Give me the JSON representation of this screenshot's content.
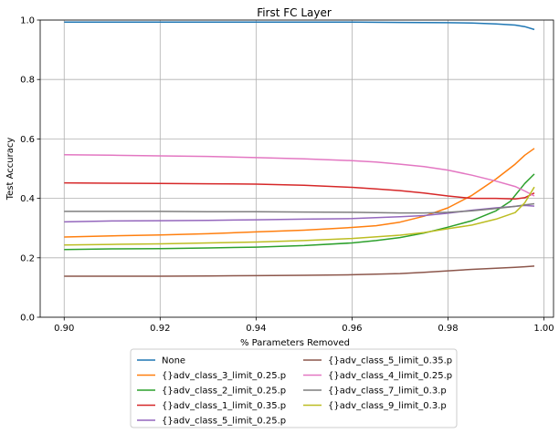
{
  "chart_data": {
    "type": "line",
    "title": "First FC Layer",
    "xlabel": "% Parameters Removed",
    "ylabel": "Test Accuracy",
    "xlim": [
      0.895,
      1.002
    ],
    "ylim": [
      0.0,
      1.0
    ],
    "xticks": [
      0.9,
      0.92,
      0.94,
      0.96,
      0.98,
      1.0
    ],
    "xtick_labels": [
      "0.90",
      "0.92",
      "0.94",
      "0.96",
      "0.98",
      "1.00"
    ],
    "yticks": [
      0.0,
      0.2,
      0.4,
      0.6,
      0.8,
      1.0
    ],
    "ytick_labels": [
      "0.0",
      "0.2",
      "0.4",
      "0.6",
      "0.8",
      "1.0"
    ],
    "grid": true,
    "legend_position": "below",
    "legend_columns": 2,
    "series": [
      {
        "name": "None",
        "color": "#1f77b4",
        "x": [
          0.9,
          0.92,
          0.94,
          0.96,
          0.97,
          0.98,
          0.985,
          0.99,
          0.994,
          0.996,
          0.998
        ],
        "y": [
          0.993,
          0.993,
          0.993,
          0.993,
          0.992,
          0.991,
          0.99,
          0.987,
          0.983,
          0.978,
          0.968
        ]
      },
      {
        "name": "{}adv_class_3_limit_0.25.p",
        "color": "#ff7f0e",
        "x": [
          0.9,
          0.91,
          0.92,
          0.93,
          0.94,
          0.95,
          0.96,
          0.965,
          0.97,
          0.975,
          0.98,
          0.985,
          0.99,
          0.994,
          0.996,
          0.998
        ],
        "y": [
          0.27,
          0.274,
          0.277,
          0.281,
          0.287,
          0.293,
          0.302,
          0.308,
          0.32,
          0.34,
          0.368,
          0.41,
          0.465,
          0.515,
          0.545,
          0.568
        ]
      },
      {
        "name": "{}adv_class_2_limit_0.25.p",
        "color": "#2ca02c",
        "x": [
          0.9,
          0.91,
          0.92,
          0.93,
          0.94,
          0.95,
          0.96,
          0.965,
          0.97,
          0.975,
          0.98,
          0.985,
          0.99,
          0.993,
          0.996,
          0.998
        ],
        "y": [
          0.228,
          0.23,
          0.231,
          0.233,
          0.236,
          0.241,
          0.25,
          0.258,
          0.268,
          0.283,
          0.303,
          0.325,
          0.358,
          0.39,
          0.45,
          0.482
        ]
      },
      {
        "name": "{}adv_class_1_limit_0.35.p",
        "color": "#d62728",
        "x": [
          0.9,
          0.91,
          0.92,
          0.93,
          0.94,
          0.95,
          0.96,
          0.965,
          0.97,
          0.975,
          0.98,
          0.985,
          0.99,
          0.994,
          0.996,
          0.998
        ],
        "y": [
          0.452,
          0.451,
          0.45,
          0.449,
          0.448,
          0.444,
          0.437,
          0.432,
          0.426,
          0.418,
          0.408,
          0.4,
          0.4,
          0.398,
          0.402,
          0.418
        ]
      },
      {
        "name": "{}adv_class_5_limit_0.25.p",
        "color": "#9467bd",
        "x": [
          0.9,
          0.91,
          0.92,
          0.93,
          0.94,
          0.95,
          0.96,
          0.97,
          0.975,
          0.98,
          0.985,
          0.99,
          0.994,
          0.996,
          0.998
        ],
        "y": [
          0.321,
          0.324,
          0.325,
          0.326,
          0.328,
          0.33,
          0.332,
          0.338,
          0.342,
          0.35,
          0.36,
          0.368,
          0.373,
          0.376,
          0.374
        ]
      },
      {
        "name": "{}adv_class_5_limit_0.35.p",
        "color": "#8c564b",
        "x": [
          0.9,
          0.91,
          0.92,
          0.93,
          0.94,
          0.95,
          0.96,
          0.97,
          0.975,
          0.98,
          0.985,
          0.99,
          0.994,
          0.996,
          0.998
        ],
        "y": [
          0.138,
          0.138,
          0.138,
          0.139,
          0.14,
          0.141,
          0.143,
          0.147,
          0.151,
          0.156,
          0.161,
          0.165,
          0.168,
          0.17,
          0.172
        ]
      },
      {
        "name": "{}adv_class_4_limit_0.25.p",
        "color": "#e377c2",
        "x": [
          0.9,
          0.91,
          0.92,
          0.93,
          0.94,
          0.95,
          0.96,
          0.965,
          0.97,
          0.975,
          0.98,
          0.985,
          0.99,
          0.994,
          0.996,
          0.998
        ],
        "y": [
          0.547,
          0.545,
          0.543,
          0.541,
          0.537,
          0.533,
          0.527,
          0.522,
          0.515,
          0.507,
          0.495,
          0.478,
          0.458,
          0.44,
          0.425,
          0.408
        ]
      },
      {
        "name": "{}adv_class_7_limit_0.3.p",
        "color": "#7f7f7f",
        "x": [
          0.9,
          0.91,
          0.92,
          0.93,
          0.94,
          0.95,
          0.96,
          0.97,
          0.975,
          0.98,
          0.985,
          0.99,
          0.994,
          0.996,
          0.998
        ],
        "y": [
          0.356,
          0.356,
          0.356,
          0.355,
          0.355,
          0.354,
          0.353,
          0.351,
          0.351,
          0.353,
          0.358,
          0.366,
          0.373,
          0.378,
          0.382
        ]
      },
      {
        "name": "{}adv_class_9_limit_0.3.p",
        "color": "#bcbd22",
        "x": [
          0.9,
          0.91,
          0.92,
          0.93,
          0.94,
          0.95,
          0.96,
          0.97,
          0.975,
          0.98,
          0.985,
          0.99,
          0.994,
          0.996,
          0.998
        ],
        "y": [
          0.243,
          0.245,
          0.247,
          0.25,
          0.253,
          0.258,
          0.265,
          0.276,
          0.285,
          0.298,
          0.31,
          0.33,
          0.352,
          0.385,
          0.438
        ]
      }
    ]
  }
}
